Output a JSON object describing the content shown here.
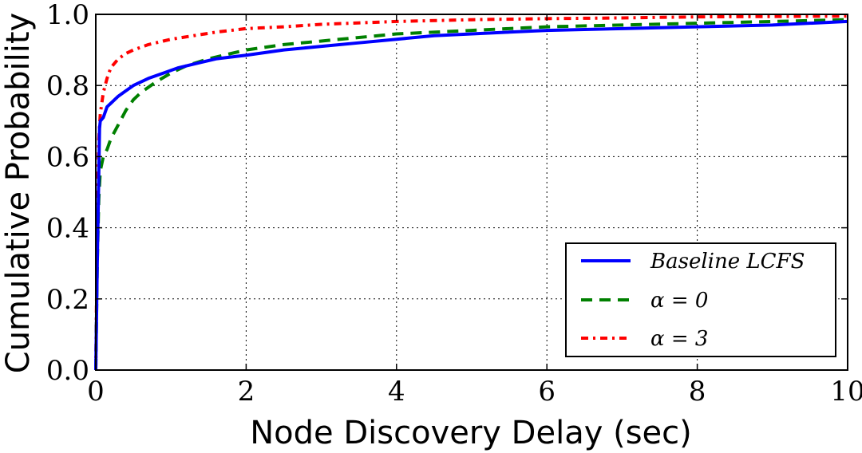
{
  "chart_data": {
    "type": "line",
    "title": "",
    "xlabel": "Node Discovery Delay (sec)",
    "ylabel": "Cumulative Probability",
    "xlim": [
      0,
      10
    ],
    "ylim": [
      0,
      1.0
    ],
    "xticks": [
      0,
      2,
      4,
      6,
      8,
      10
    ],
    "yticks": [
      0.0,
      0.2,
      0.4,
      0.6,
      0.8,
      1.0
    ],
    "xtick_labels": [
      "0",
      "2",
      "4",
      "6",
      "8",
      "10"
    ],
    "ytick_labels": [
      "0.0",
      "0.2",
      "0.4",
      "0.6",
      "0.8",
      "1.0"
    ],
    "grid": true,
    "legend_position": "lower-right",
    "series": [
      {
        "name": "Baseline LCFS",
        "color": "#0000ff",
        "style": "solid",
        "x": [
          0,
          0.02,
          0.04,
          0.05,
          0.06,
          0.1,
          0.15,
          0.2,
          0.3,
          0.4,
          0.5,
          0.7,
          0.9,
          1.1,
          1.3,
          1.6,
          2.0,
          2.5,
          3.0,
          3.5,
          4.0,
          4.5,
          5.0,
          5.5,
          6.0,
          7.0,
          8.0,
          9.0,
          10.0
        ],
        "y": [
          0,
          0.3,
          0.55,
          0.68,
          0.7,
          0.71,
          0.74,
          0.75,
          0.77,
          0.785,
          0.8,
          0.82,
          0.835,
          0.85,
          0.86,
          0.875,
          0.885,
          0.9,
          0.91,
          0.92,
          0.93,
          0.94,
          0.945,
          0.95,
          0.955,
          0.96,
          0.965,
          0.97,
          0.98
        ]
      },
      {
        "name": "α = 0",
        "color": "#008000",
        "style": "dashed",
        "x": [
          0,
          0.02,
          0.04,
          0.06,
          0.08,
          0.1,
          0.15,
          0.2,
          0.3,
          0.4,
          0.5,
          0.6,
          0.8,
          1.0,
          1.2,
          1.5,
          2.0,
          2.5,
          3.0,
          3.5,
          4.0,
          5.0,
          6.0,
          7.0,
          8.0,
          9.0,
          10.0
        ],
        "y": [
          0,
          0.3,
          0.48,
          0.56,
          0.58,
          0.6,
          0.62,
          0.65,
          0.69,
          0.73,
          0.76,
          0.78,
          0.81,
          0.835,
          0.855,
          0.875,
          0.9,
          0.915,
          0.925,
          0.935,
          0.945,
          0.955,
          0.965,
          0.97,
          0.975,
          0.98,
          0.985
        ]
      },
      {
        "name": "α = 3",
        "color": "#ff0000",
        "style": "dashdot",
        "x": [
          0,
          0.02,
          0.04,
          0.06,
          0.1,
          0.15,
          0.2,
          0.3,
          0.4,
          0.5,
          0.7,
          1.0,
          1.3,
          1.6,
          2.0,
          2.5,
          3.0,
          4.0,
          5.0,
          6.0,
          7.0,
          8.0,
          10.0
        ],
        "y": [
          0,
          0.4,
          0.65,
          0.72,
          0.78,
          0.82,
          0.85,
          0.875,
          0.89,
          0.9,
          0.915,
          0.93,
          0.94,
          0.95,
          0.96,
          0.965,
          0.972,
          0.98,
          0.985,
          0.988,
          0.99,
          0.993,
          0.995
        ]
      }
    ]
  }
}
